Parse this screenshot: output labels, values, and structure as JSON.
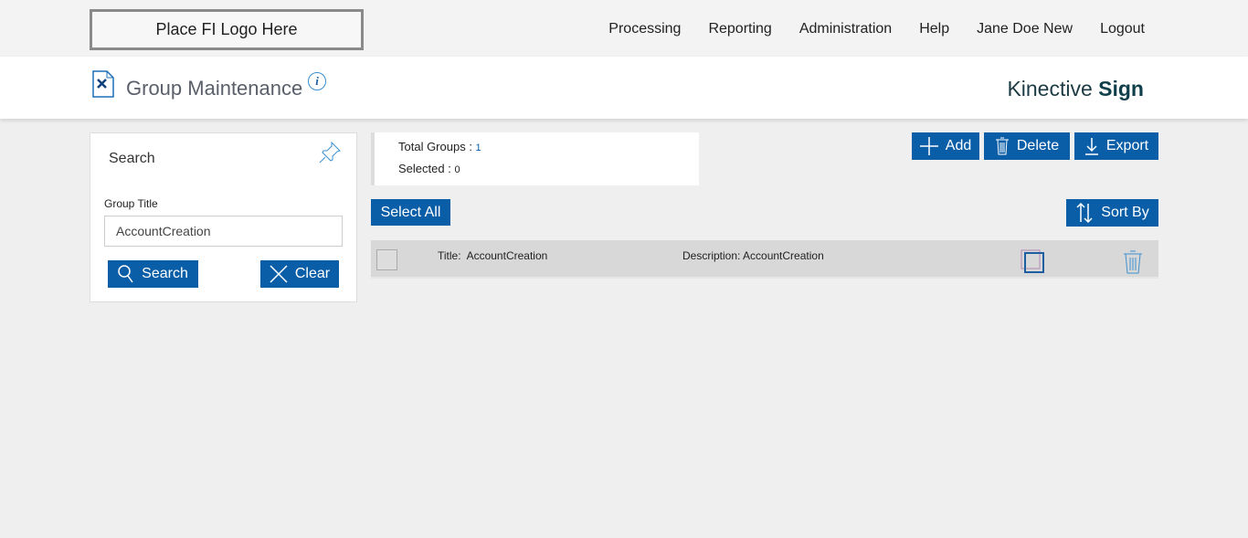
{
  "top": {
    "logo": "Place FI Logo Here",
    "nav": [
      "Processing",
      "Reporting",
      "Administration",
      "Help",
      "Jane Doe New",
      "Logout"
    ]
  },
  "header": {
    "title": "Group Maintenance",
    "info": "i",
    "brand_light": "Kinective",
    "brand_bold": "Sign"
  },
  "search": {
    "heading": "Search",
    "field_label": "Group Title",
    "field_value": "AccountCreation",
    "search_label": "Search",
    "clear_label": "Clear"
  },
  "stats": {
    "total_label": "Total Groups : ",
    "total": "1",
    "selected_label": "Selected : ",
    "selected": "0"
  },
  "toolbar": {
    "add": "Add",
    "delete": "Delete",
    "export": "Export",
    "select_all": "Select All",
    "sort_by": "Sort By"
  },
  "colors": {
    "primary": "#0a5ea8"
  },
  "rows": [
    {
      "title_label": "Title:",
      "title": "AccountCreation",
      "desc_label": "Description:",
      "desc": "AccountCreation"
    }
  ]
}
